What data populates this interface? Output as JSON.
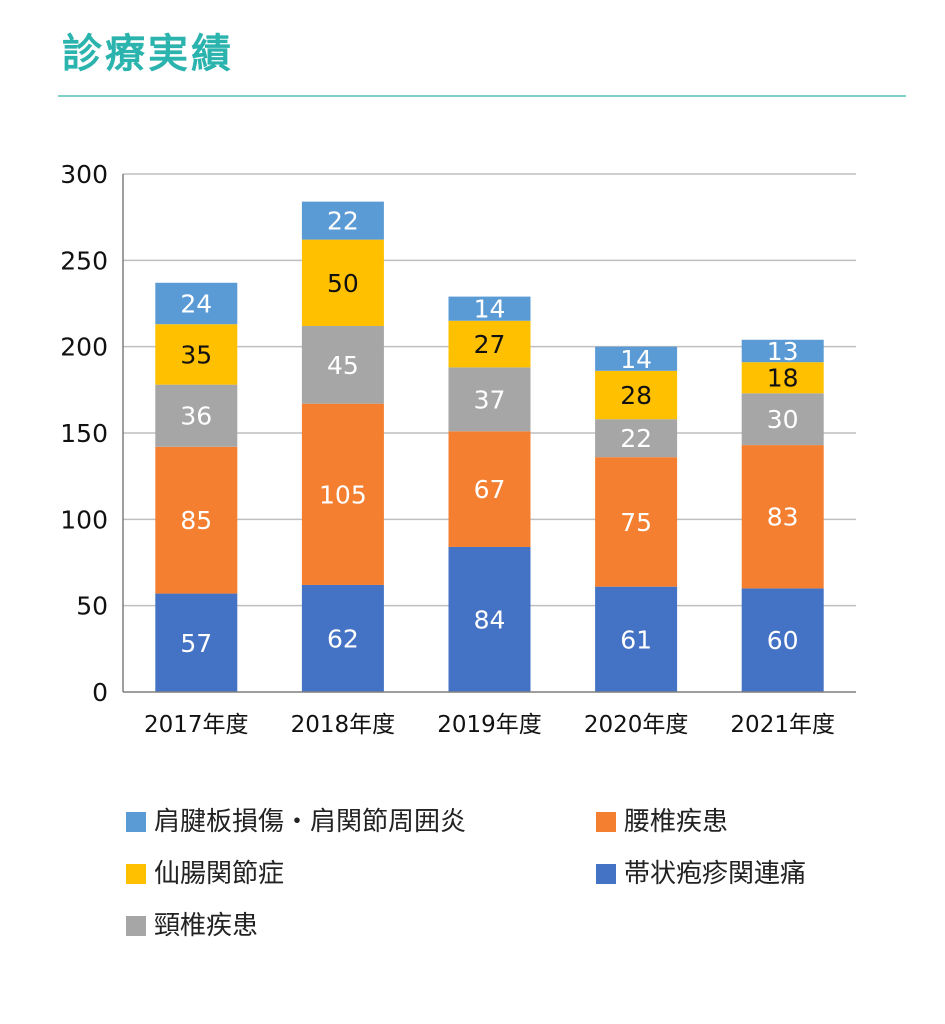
{
  "title": "診療実績",
  "chart_data": {
    "type": "bar",
    "stacked": true,
    "categories": [
      "2017年度",
      "2018年度",
      "2019年度",
      "2020年度",
      "2021年度"
    ],
    "ylim": [
      0,
      300
    ],
    "yticks": [
      0,
      50,
      100,
      150,
      200,
      250,
      300
    ],
    "grid": true,
    "legend_position": "bottom",
    "series": [
      {
        "name": "帯状疱疹関連痛",
        "color": "#4472c4",
        "label_color": "#ffffff",
        "values": [
          57,
          62,
          84,
          61,
          60
        ]
      },
      {
        "name": "腰椎疾患",
        "color": "#f47f30",
        "label_color": "#ffffff",
        "values": [
          85,
          105,
          67,
          75,
          83
        ]
      },
      {
        "name": "頸椎疾患",
        "color": "#a6a6a6",
        "label_color": "#ffffff",
        "values": [
          36,
          45,
          37,
          22,
          30
        ]
      },
      {
        "name": "仙腸関節症",
        "color": "#ffc000",
        "label_color": "#111111",
        "values": [
          35,
          50,
          27,
          28,
          18
        ]
      },
      {
        "name": "肩腱板損傷・肩関節周囲炎",
        "color": "#5b9bd5",
        "label_color": "#ffffff",
        "values": [
          24,
          22,
          14,
          14,
          13
        ]
      }
    ]
  }
}
